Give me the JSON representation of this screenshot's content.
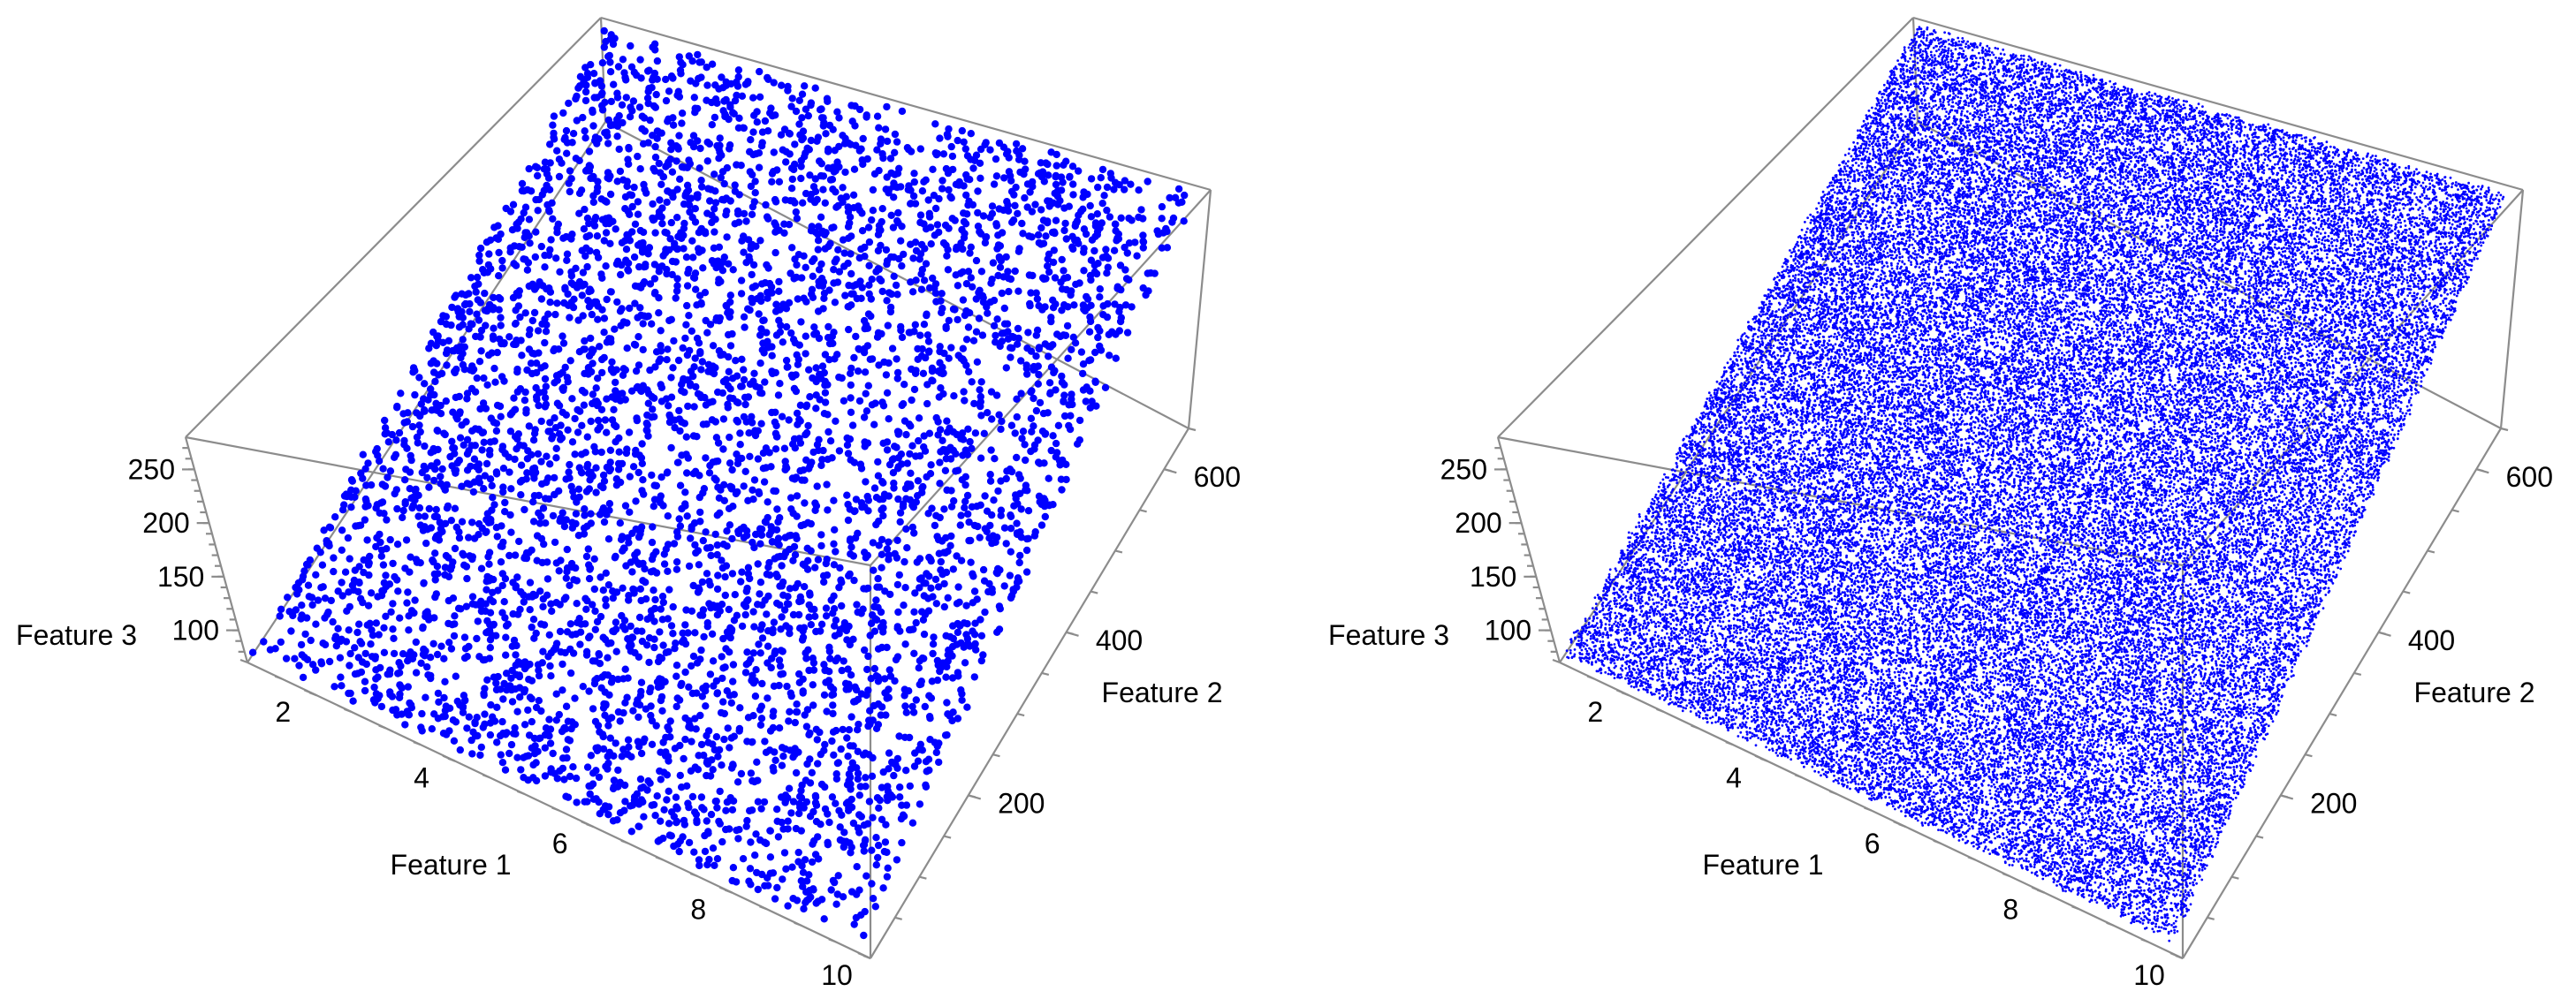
{
  "chart_data": [
    {
      "type": "scatter3d",
      "series": [
        {
          "color": "#0000ff",
          "point_count": "sparse"
        }
      ],
      "axes": {
        "x": {
          "label": "Feature 1",
          "range": [
            1,
            10
          ],
          "ticks": [
            "2",
            "4",
            "6",
            "8",
            "10"
          ]
        },
        "y": {
          "label": "Feature 2",
          "range": [
            0,
            650
          ],
          "ticks": [
            "200",
            "400",
            "600"
          ]
        },
        "z": {
          "label": "Feature 3",
          "range": [
            70,
            280
          ],
          "ticks": [
            "100",
            "150",
            "200",
            "250"
          ]
        }
      },
      "trend": "points lie on a tilted plane; Feature 3 increases with Feature 1 and Feature 2",
      "points": [
        [
          2,
          50,
          100
        ],
        [
          2,
          300,
          130
        ],
        [
          2,
          600,
          170
        ],
        [
          4,
          50,
          120
        ],
        [
          4,
          300,
          155
        ],
        [
          4,
          600,
          195
        ],
        [
          6,
          50,
          140
        ],
        [
          6,
          300,
          180
        ],
        [
          6,
          600,
          220
        ],
        [
          8,
          50,
          165
        ],
        [
          8,
          300,
          205
        ],
        [
          8,
          600,
          245
        ],
        [
          10,
          50,
          185
        ],
        [
          10,
          300,
          225
        ],
        [
          10,
          600,
          265
        ]
      ]
    },
    {
      "type": "scatter3d",
      "series": [
        {
          "color": "#0000ff",
          "point_count": "dense"
        }
      ],
      "axes": {
        "x": {
          "label": "Feature 1",
          "range": [
            1,
            10
          ],
          "ticks": [
            "2",
            "4",
            "6",
            "8",
            "10"
          ]
        },
        "y": {
          "label": "Feature 2",
          "range": [
            0,
            650
          ],
          "ticks": [
            "200",
            "400",
            "600"
          ]
        },
        "z": {
          "label": "Feature 3",
          "range": [
            70,
            280
          ],
          "ticks": [
            "100",
            "150",
            "200",
            "250"
          ]
        }
      },
      "trend": "points lie on a tilted plane; Feature 3 increases with Feature 1 and Feature 2",
      "points": [
        [
          2,
          50,
          100
        ],
        [
          2,
          300,
          130
        ],
        [
          2,
          600,
          170
        ],
        [
          4,
          50,
          120
        ],
        [
          4,
          300,
          155
        ],
        [
          4,
          600,
          195
        ],
        [
          6,
          50,
          140
        ],
        [
          6,
          300,
          180
        ],
        [
          6,
          600,
          220
        ],
        [
          8,
          50,
          165
        ],
        [
          8,
          300,
          205
        ],
        [
          8,
          600,
          245
        ],
        [
          10,
          50,
          185
        ],
        [
          10,
          300,
          225
        ],
        [
          10,
          600,
          265
        ]
      ]
    }
  ]
}
